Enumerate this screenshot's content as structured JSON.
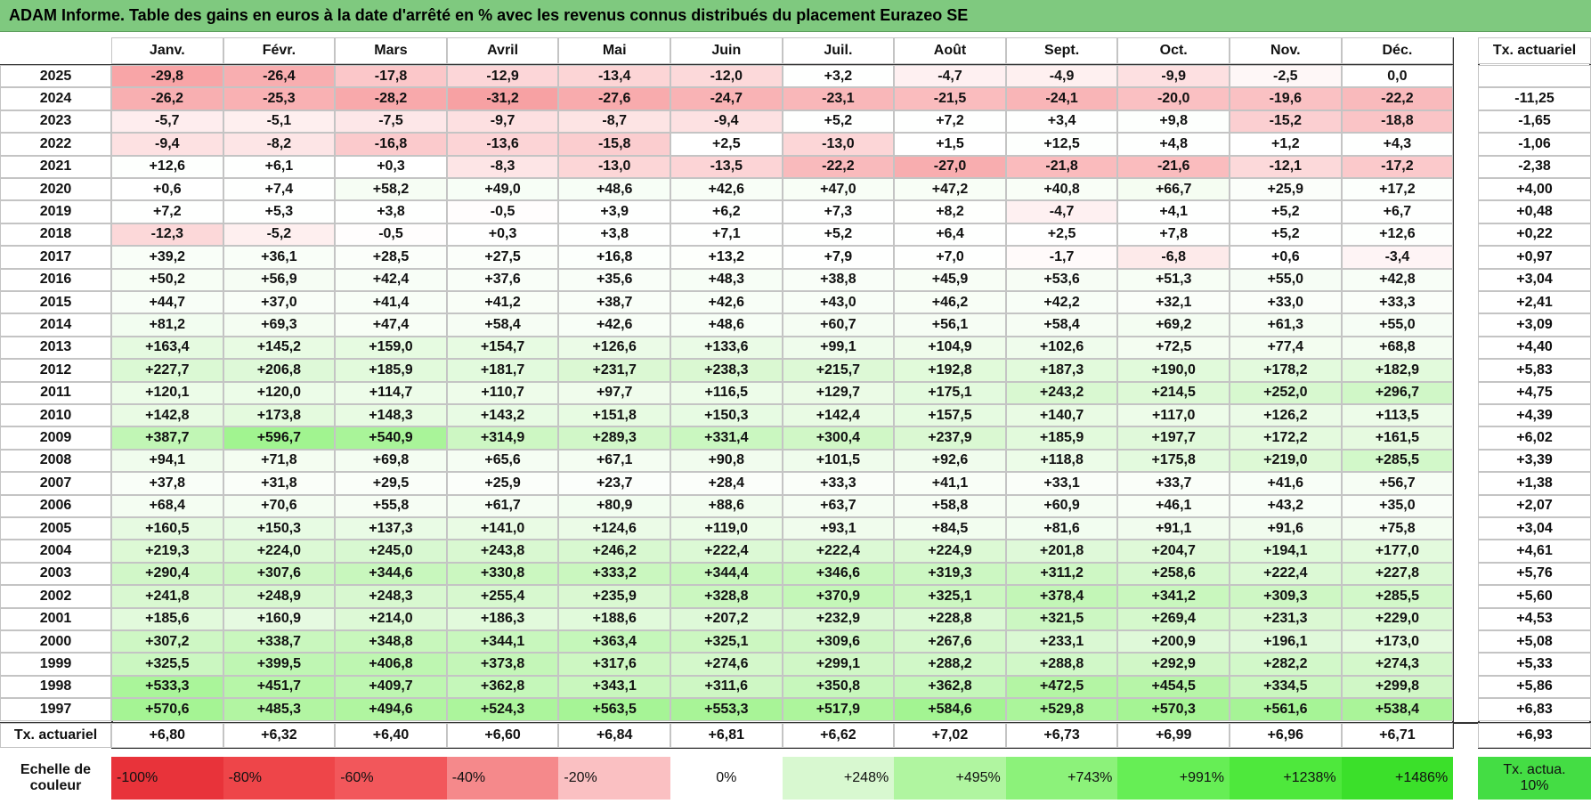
{
  "header": {
    "title": "ADAM Informe. Table des gains en euros à la date d'arrêté en % avec les revenus connus distribués du placement Eurazeo SE"
  },
  "table": {
    "columns": [
      "Janv.",
      "Févr.",
      "Mars",
      "Avril",
      "Mai",
      "Juin",
      "Juil.",
      "Août",
      "Sept.",
      "Oct.",
      "Nov.",
      "Déc."
    ],
    "tx_header": "Tx. actuariel",
    "rows": [
      {
        "year": "2025",
        "cells": [
          "-29,8",
          "-26,4",
          "-17,8",
          "-12,9",
          "-13,4",
          "-12,0",
          "+3,2",
          "-4,7",
          "-4,9",
          "-9,9",
          "-2,5",
          "0,0"
        ],
        "tx": null
      },
      {
        "year": "2024",
        "cells": [
          "-26,2",
          "-25,3",
          "-28,2",
          "-31,2",
          "-27,6",
          "-24,7",
          "-23,1",
          "-21,5",
          "-24,1",
          "-20,0",
          "-19,6",
          "-22,2"
        ],
        "tx": "-11,25"
      },
      {
        "year": "2023",
        "cells": [
          "-5,7",
          "-5,1",
          "-7,5",
          "-9,7",
          "-8,7",
          "-9,4",
          "+5,2",
          "+7,2",
          "+3,4",
          "+9,8",
          "-15,2",
          "-18,8"
        ],
        "tx": "-1,65"
      },
      {
        "year": "2022",
        "cells": [
          "-9,4",
          "-8,2",
          "-16,8",
          "-13,6",
          "-15,8",
          "+2,5",
          "-13,0",
          "+1,5",
          "+12,5",
          "+4,8",
          "+1,2",
          "+4,3"
        ],
        "tx": "-1,06"
      },
      {
        "year": "2021",
        "cells": [
          "+12,6",
          "+6,1",
          "+0,3",
          "-8,3",
          "-13,0",
          "-13,5",
          "-22,2",
          "-27,0",
          "-21,8",
          "-21,6",
          "-12,1",
          "-17,2"
        ],
        "tx": "-2,38"
      },
      {
        "year": "2020",
        "cells": [
          "+0,6",
          "+7,4",
          "+58,2",
          "+49,0",
          "+48,6",
          "+42,6",
          "+47,0",
          "+47,2",
          "+40,8",
          "+66,7",
          "+25,9",
          "+17,2"
        ],
        "tx": "+4,00"
      },
      {
        "year": "2019",
        "cells": [
          "+7,2",
          "+5,3",
          "+3,8",
          "-0,5",
          "+3,9",
          "+6,2",
          "+7,3",
          "+8,2",
          "-4,7",
          "+4,1",
          "+5,2",
          "+6,7"
        ],
        "tx": "+0,48"
      },
      {
        "year": "2018",
        "cells": [
          "-12,3",
          "-5,2",
          "-0,5",
          "+0,3",
          "+3,8",
          "+7,1",
          "+5,2",
          "+6,4",
          "+2,5",
          "+7,8",
          "+5,2",
          "+12,6"
        ],
        "tx": "+0,22"
      },
      {
        "year": "2017",
        "cells": [
          "+39,2",
          "+36,1",
          "+28,5",
          "+27,5",
          "+16,8",
          "+13,2",
          "+7,9",
          "+7,0",
          "-1,7",
          "-6,8",
          "+0,6",
          "-3,4"
        ],
        "tx": "+0,97"
      },
      {
        "year": "2016",
        "cells": [
          "+50,2",
          "+56,9",
          "+42,4",
          "+37,6",
          "+35,6",
          "+48,3",
          "+38,8",
          "+45,9",
          "+53,6",
          "+51,3",
          "+55,0",
          "+42,8"
        ],
        "tx": "+3,04"
      },
      {
        "year": "2015",
        "cells": [
          "+44,7",
          "+37,0",
          "+41,4",
          "+41,2",
          "+38,7",
          "+42,6",
          "+43,0",
          "+46,2",
          "+42,2",
          "+32,1",
          "+33,0",
          "+33,3"
        ],
        "tx": "+2,41"
      },
      {
        "year": "2014",
        "cells": [
          "+81,2",
          "+69,3",
          "+47,4",
          "+58,4",
          "+42,6",
          "+48,6",
          "+60,7",
          "+56,1",
          "+58,4",
          "+69,2",
          "+61,3",
          "+55,0"
        ],
        "tx": "+3,09"
      },
      {
        "year": "2013",
        "cells": [
          "+163,4",
          "+145,2",
          "+159,0",
          "+154,7",
          "+126,6",
          "+133,6",
          "+99,1",
          "+104,9",
          "+102,6",
          "+72,5",
          "+77,4",
          "+68,8"
        ],
        "tx": "+4,40"
      },
      {
        "year": "2012",
        "cells": [
          "+227,7",
          "+206,8",
          "+185,9",
          "+181,7",
          "+231,7",
          "+238,3",
          "+215,7",
          "+192,8",
          "+187,3",
          "+190,0",
          "+178,2",
          "+182,9"
        ],
        "tx": "+5,83"
      },
      {
        "year": "2011",
        "cells": [
          "+120,1",
          "+120,0",
          "+114,7",
          "+110,7",
          "+97,7",
          "+116,5",
          "+129,7",
          "+175,1",
          "+243,2",
          "+214,5",
          "+252,0",
          "+296,7"
        ],
        "tx": "+4,75"
      },
      {
        "year": "2010",
        "cells": [
          "+142,8",
          "+173,8",
          "+148,3",
          "+143,2",
          "+151,8",
          "+150,3",
          "+142,4",
          "+157,5",
          "+140,7",
          "+117,0",
          "+126,2",
          "+113,5"
        ],
        "tx": "+4,39"
      },
      {
        "year": "2009",
        "cells": [
          "+387,7",
          "+596,7",
          "+540,9",
          "+314,9",
          "+289,3",
          "+331,4",
          "+300,4",
          "+237,9",
          "+185,9",
          "+197,7",
          "+172,2",
          "+161,5"
        ],
        "tx": "+6,02"
      },
      {
        "year": "2008",
        "cells": [
          "+94,1",
          "+71,8",
          "+69,8",
          "+65,6",
          "+67,1",
          "+90,8",
          "+101,5",
          "+92,6",
          "+118,8",
          "+175,8",
          "+219,0",
          "+285,5"
        ],
        "tx": "+3,39"
      },
      {
        "year": "2007",
        "cells": [
          "+37,8",
          "+31,8",
          "+29,5",
          "+25,9",
          "+23,7",
          "+28,4",
          "+33,3",
          "+41,1",
          "+33,1",
          "+33,7",
          "+41,6",
          "+56,7"
        ],
        "tx": "+1,38"
      },
      {
        "year": "2006",
        "cells": [
          "+68,4",
          "+70,6",
          "+55,8",
          "+61,7",
          "+80,9",
          "+88,6",
          "+63,7",
          "+58,8",
          "+60,9",
          "+46,1",
          "+43,2",
          "+35,0"
        ],
        "tx": "+2,07"
      },
      {
        "year": "2005",
        "cells": [
          "+160,5",
          "+150,3",
          "+137,3",
          "+141,0",
          "+124,6",
          "+119,0",
          "+93,1",
          "+84,5",
          "+81,6",
          "+91,1",
          "+91,6",
          "+75,8"
        ],
        "tx": "+3,04"
      },
      {
        "year": "2004",
        "cells": [
          "+219,3",
          "+224,0",
          "+245,0",
          "+243,8",
          "+246,2",
          "+222,4",
          "+222,4",
          "+224,9",
          "+201,8",
          "+204,7",
          "+194,1",
          "+177,0"
        ],
        "tx": "+4,61"
      },
      {
        "year": "2003",
        "cells": [
          "+290,4",
          "+307,6",
          "+344,6",
          "+330,8",
          "+333,2",
          "+344,4",
          "+346,6",
          "+319,3",
          "+311,2",
          "+258,6",
          "+222,4",
          "+227,8"
        ],
        "tx": "+5,76"
      },
      {
        "year": "2002",
        "cells": [
          "+241,8",
          "+248,9",
          "+248,3",
          "+255,4",
          "+235,9",
          "+328,8",
          "+370,9",
          "+325,1",
          "+378,4",
          "+341,2",
          "+309,3",
          "+285,5"
        ],
        "tx": "+5,60"
      },
      {
        "year": "2001",
        "cells": [
          "+185,6",
          "+160,9",
          "+214,0",
          "+186,3",
          "+188,6",
          "+207,2",
          "+232,9",
          "+228,8",
          "+321,5",
          "+269,4",
          "+231,3",
          "+229,0"
        ],
        "tx": "+4,53"
      },
      {
        "year": "2000",
        "cells": [
          "+307,2",
          "+338,7",
          "+348,8",
          "+344,1",
          "+363,4",
          "+325,1",
          "+309,6",
          "+267,6",
          "+233,1",
          "+200,9",
          "+196,1",
          "+173,0"
        ],
        "tx": "+5,08"
      },
      {
        "year": "1999",
        "cells": [
          "+325,5",
          "+399,5",
          "+406,8",
          "+373,8",
          "+317,6",
          "+274,6",
          "+299,1",
          "+288,2",
          "+288,8",
          "+292,9",
          "+282,2",
          "+274,3"
        ],
        "tx": "+5,33"
      },
      {
        "year": "1998",
        "cells": [
          "+533,3",
          "+451,7",
          "+409,7",
          "+362,8",
          "+343,1",
          "+311,6",
          "+350,8",
          "+362,8",
          "+472,5",
          "+454,5",
          "+334,5",
          "+299,8"
        ],
        "tx": "+5,86"
      },
      {
        "year": "1997",
        "cells": [
          "+570,6",
          "+485,3",
          "+494,6",
          "+524,3",
          "+563,5",
          "+553,3",
          "+517,9",
          "+584,6",
          "+529,8",
          "+570,3",
          "+561,6",
          "+538,4"
        ],
        "tx": "+6,83"
      }
    ],
    "footer": {
      "label": "Tx. actuariel",
      "cells": [
        "+6,80",
        "+6,32",
        "+6,40",
        "+6,60",
        "+6,84",
        "+6,81",
        "+6,62",
        "+7,02",
        "+6,73",
        "+6,99",
        "+6,96",
        "+6,71"
      ],
      "tx": "+6,93"
    }
  },
  "scale": {
    "label": "Echelle de couleur",
    "stops": [
      {
        "label": "-100%",
        "color": "#e8333a"
      },
      {
        "label": "-80%",
        "color": "#ee4549"
      },
      {
        "label": "-60%",
        "color": "#f2575b"
      },
      {
        "label": "-40%",
        "color": "#f5898b"
      },
      {
        "label": "-20%",
        "color": "#fac0c2"
      },
      {
        "label": "0%",
        "color": "#ffffff"
      },
      {
        "label": "+248%",
        "color": "#d8f8d0"
      },
      {
        "label": "+495%",
        "color": "#b0f5a0"
      },
      {
        "label": "+743%",
        "color": "#8cf27a"
      },
      {
        "label": "+991%",
        "color": "#66ee55"
      },
      {
        "label": "+1238%",
        "color": "#4ee83c"
      },
      {
        "label": "+1486%",
        "color": "#3be02a"
      }
    ],
    "tx": {
      "label": "Tx. actua. 10%",
      "color": "#44dd44"
    }
  }
}
